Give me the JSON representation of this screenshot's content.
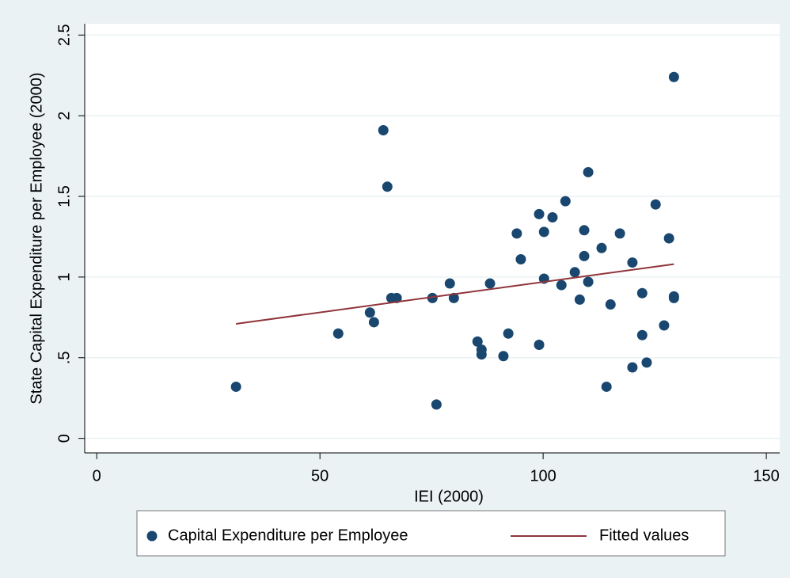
{
  "chart_data": {
    "type": "scatter",
    "x_label": "IEI (2000)",
    "y_label": "State Capital Expenditure per Employee (2000)",
    "xlim": [
      -2.7,
      153
    ],
    "xticks": [
      0,
      50,
      100,
      150
    ],
    "ylim": [
      -0.09,
      2.57
    ],
    "yticks": [
      0,
      {
        "value": 0.5,
        "label": ".5"
      },
      1,
      1.5,
      2,
      2.5
    ],
    "grid": true,
    "series": [
      {
        "name": "Capital Expenditure per Employee",
        "type": "scatter",
        "color": "#1a476f",
        "x": [
          31.2,
          54.1,
          61.2,
          62.1,
          64.2,
          65.1,
          66.0,
          67.2,
          75.2,
          76.1,
          79.1,
          80.0,
          85.3,
          86.2,
          86.2,
          88.1,
          91.1,
          92.2,
          94.1,
          95.0,
          99.1,
          99.1,
          100.2,
          100.2,
          102.1,
          104.1,
          105.0,
          107.1,
          108.2,
          109.2,
          109.2,
          110.1,
          110.1,
          113.1,
          114.2,
          115.1,
          117.2,
          120.0,
          120.0,
          122.2,
          122.2,
          123.2,
          125.2,
          127.1,
          128.2,
          129.3,
          129.3,
          129.3
        ],
        "values": [
          0.32,
          0.65,
          0.78,
          0.72,
          1.91,
          1.56,
          0.87,
          0.87,
          0.87,
          0.21,
          0.96,
          0.87,
          0.6,
          0.55,
          0.52,
          0.96,
          0.51,
          0.65,
          1.27,
          1.11,
          1.39,
          0.58,
          1.28,
          0.99,
          1.37,
          0.95,
          1.47,
          1.03,
          0.86,
          1.29,
          1.13,
          1.65,
          0.97,
          1.18,
          0.32,
          0.83,
          1.27,
          1.09,
          0.44,
          0.9,
          0.64,
          0.47,
          1.45,
          0.7,
          1.24,
          2.24,
          0.88,
          0.87
        ]
      },
      {
        "name": "Fitted values",
        "type": "line",
        "color": "#90353b",
        "x": [
          31.2,
          129.3
        ],
        "values": [
          0.71,
          1.08
        ]
      }
    ]
  }
}
